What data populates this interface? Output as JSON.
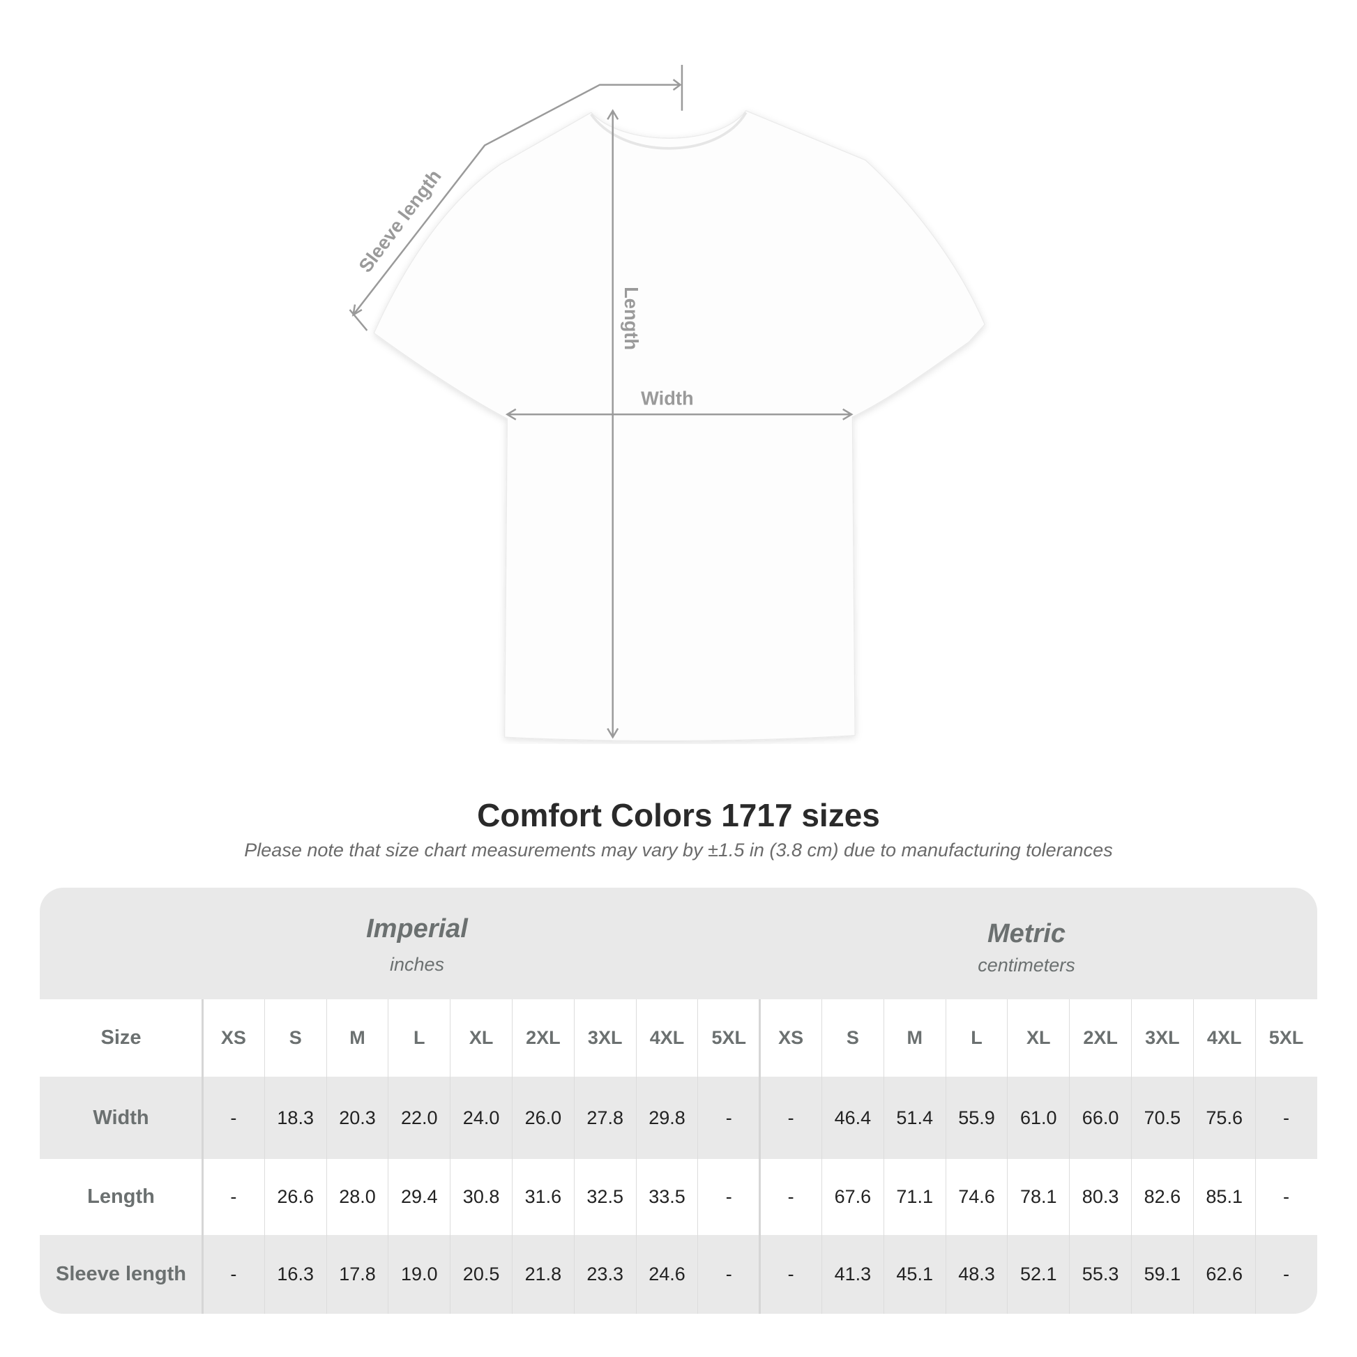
{
  "diagram": {
    "labels": {
      "sleeve": "Sleeve length",
      "length": "Length",
      "width": "Width"
    },
    "line_color": "#9a9a9a"
  },
  "title": "Comfort Colors 1717 sizes",
  "note": "Please note that size chart measurements may vary by ±1.5 in (3.8 cm) due to manufacturing tolerances",
  "table": {
    "imperial": {
      "name": "Imperial",
      "unit": "inches"
    },
    "metric": {
      "name": "Metric",
      "unit": "centimeters"
    },
    "size_label": "Size",
    "sizes": [
      "XS",
      "S",
      "M",
      "L",
      "XL",
      "2XL",
      "3XL",
      "4XL",
      "5XL"
    ],
    "rows": [
      {
        "label": "Width",
        "imperial": [
          "-",
          "18.3",
          "20.3",
          "22.0",
          "24.0",
          "26.0",
          "27.8",
          "29.8",
          "-"
        ],
        "metric": [
          "-",
          "46.4",
          "51.4",
          "55.9",
          "61.0",
          "66.0",
          "70.5",
          "75.6",
          "-"
        ]
      },
      {
        "label": "Length",
        "imperial": [
          "-",
          "26.6",
          "28.0",
          "29.4",
          "30.8",
          "31.6",
          "32.5",
          "33.5",
          "-"
        ],
        "metric": [
          "-",
          "67.6",
          "71.1",
          "74.6",
          "78.1",
          "80.3",
          "82.6",
          "85.1",
          "-"
        ]
      },
      {
        "label": "Sleeve length",
        "imperial": [
          "-",
          "16.3",
          "17.8",
          "19.0",
          "20.5",
          "21.8",
          "23.3",
          "24.6",
          "-"
        ],
        "metric": [
          "-",
          "41.3",
          "45.1",
          "48.3",
          "52.1",
          "55.3",
          "59.1",
          "62.6",
          "-"
        ]
      }
    ],
    "colors": {
      "band": "#e9e9e9",
      "label": "#6b7070",
      "value": "#222222"
    }
  }
}
